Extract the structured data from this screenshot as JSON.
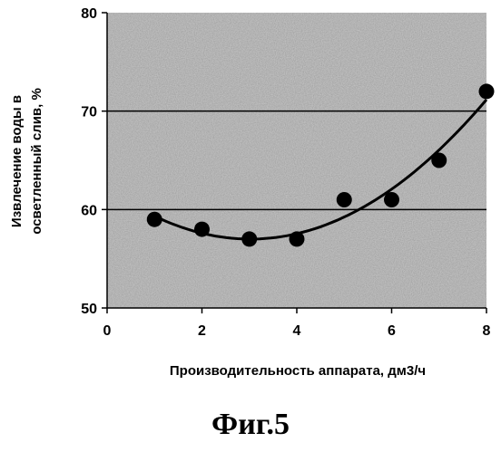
{
  "chart_data": {
    "type": "scatter",
    "x": [
      1,
      2,
      3,
      4,
      5,
      6,
      7,
      8
    ],
    "y": [
      59,
      58,
      57,
      57,
      61,
      61,
      65,
      72
    ],
    "trendline": "polynomial",
    "xlabel": "Производительность аппарата, дм3/ч",
    "ylabel_lines": [
      "Извлечение воды в",
      "осветленный слив, %"
    ],
    "xlim": [
      0,
      8
    ],
    "ylim": [
      50,
      80
    ],
    "xticks": [
      "0",
      "2",
      "4",
      "6",
      "8"
    ],
    "yticks": [
      "50",
      "60",
      "70",
      "80"
    ],
    "grid": "horizontal",
    "legend": "none",
    "plot_background": "#c9c9c9",
    "marker_color": "#000000"
  },
  "caption": "Фиг.5"
}
